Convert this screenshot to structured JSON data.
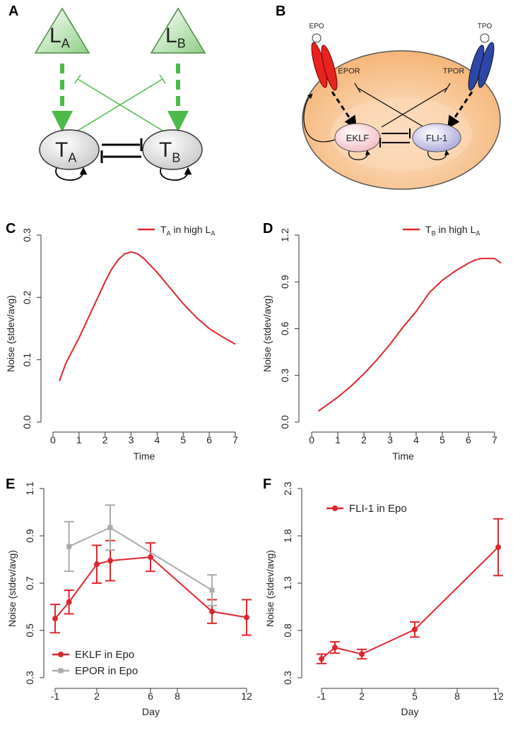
{
  "panels": [
    "A",
    "B",
    "C",
    "D",
    "E",
    "F"
  ],
  "diagram_a": {
    "ligands": [
      [
        "L",
        "A"
      ],
      [
        "L",
        "B"
      ]
    ],
    "targets": [
      [
        "T",
        "A"
      ],
      [
        "T",
        "B"
      ]
    ]
  },
  "diagram_b": {
    "ligands": [
      "EPO",
      "TPO"
    ],
    "receptors": [
      "EPOR",
      "TPOR"
    ],
    "factors": [
      "EKLF",
      "FLI-1"
    ]
  },
  "chart_data": [
    {
      "type": "line",
      "y_label": "Noise (stdev/avg)",
      "x_label": "Time",
      "x": [
        0.25,
        0.5,
        1,
        1.5,
        2,
        2.25,
        2.5,
        2.75,
        3,
        3.25,
        3.5,
        4,
        4.5,
        5,
        5.5,
        6,
        6.5,
        7
      ],
      "series": [
        {
          "name": [
            "T",
            "A",
            " in high L",
            "A"
          ],
          "color": "#e0262b",
          "values": [
            0.066,
            0.095,
            0.135,
            0.18,
            0.225,
            0.245,
            0.26,
            0.27,
            0.273,
            0.27,
            0.262,
            0.24,
            0.215,
            0.19,
            0.168,
            0.15,
            0.137,
            0.125
          ]
        }
      ],
      "xlim": [
        -0.46,
        7
      ],
      "ylim": [
        -0.016,
        0.3
      ],
      "xticks": [
        0,
        1,
        2,
        3,
        4,
        5,
        6,
        7
      ],
      "yticks": [
        {
          "value": 0,
          "label": "0.0"
        },
        0.1,
        0.2,
        0.3
      ]
    },
    {
      "type": "line",
      "y_label": "Noise (stdev/avg)",
      "x_label": "Time",
      "x": [
        0.25,
        0.5,
        1,
        1.5,
        2,
        2.5,
        3,
        3.5,
        4,
        4.25,
        4.5,
        5,
        5.5,
        6,
        6.25,
        6.5,
        7,
        7.25
      ],
      "series": [
        {
          "name": [
            "T",
            "B",
            " in high L",
            "A"
          ],
          "color": "#e0262b",
          "values": [
            0.07,
            0.1,
            0.16,
            0.23,
            0.31,
            0.4,
            0.5,
            0.61,
            0.71,
            0.77,
            0.83,
            0.91,
            0.97,
            1.02,
            1.04,
            1.05,
            1.05,
            1.02
          ]
        }
      ],
      "xlim": [
        -0.49,
        7.22
      ],
      "ylim": [
        -0.064,
        1.2
      ],
      "xticks": [
        0,
        1,
        2,
        3,
        4,
        5,
        6,
        7
      ],
      "yticks": [
        {
          "value": 0,
          "label": "0.0"
        },
        0.3,
        0.6,
        0.9,
        1.2
      ]
    },
    {
      "type": "errorline",
      "y_label": "Noise (stdev/avg)",
      "x_label": "Day",
      "series": [
        {
          "name": "EKLF in Epo",
          "color": "#e0262b",
          "marker": "circle",
          "x": [
            -1,
            0,
            2,
            3,
            6,
            10,
            12
          ],
          "values": [
            0.55,
            0.62,
            0.78,
            0.795,
            0.81,
            0.58,
            0.555
          ],
          "errors": [
            0.06,
            0.05,
            0.08,
            0.085,
            0.06,
            0.05,
            0.075
          ]
        },
        {
          "name": "EPOR in Epo",
          "color": "#aaaaaa",
          "marker": "square",
          "x": [
            0,
            3,
            10
          ],
          "values": [
            0.855,
            0.935,
            0.67
          ],
          "errors": [
            0.105,
            0.095,
            0.065
          ]
        }
      ],
      "xlim": [
        -1,
        12
      ],
      "ylim": [
        0.255,
        1.1
      ],
      "xticks": [
        -1,
        2,
        6,
        8,
        12
      ],
      "yticks": [
        0.3,
        0.5,
        0.7,
        0.9,
        1.1
      ],
      "legend": "bottom-left"
    },
    {
      "type": "errorline",
      "y_label": "Noise (stdev/avg)",
      "x_label": "Day",
      "series": [
        {
          "name": "FLI-1 in Epo",
          "color": "#e0262b",
          "marker": "circle",
          "x": [
            -1,
            0,
            2,
            5,
            12
          ],
          "values": [
            0.5,
            0.62,
            0.55,
            0.81,
            1.68
          ],
          "errors": [
            0.05,
            0.06,
            0.05,
            0.08,
            0.3
          ]
        }
      ],
      "xlim": [
        -1,
        12
      ],
      "ylim": [
        0.188,
        2.3
      ],
      "xticks": [
        -1,
        2,
        5,
        8,
        12
      ],
      "yticks": [
        0.3,
        0.8,
        1.3,
        1.8,
        2.3
      ],
      "legend": "top-left"
    }
  ]
}
